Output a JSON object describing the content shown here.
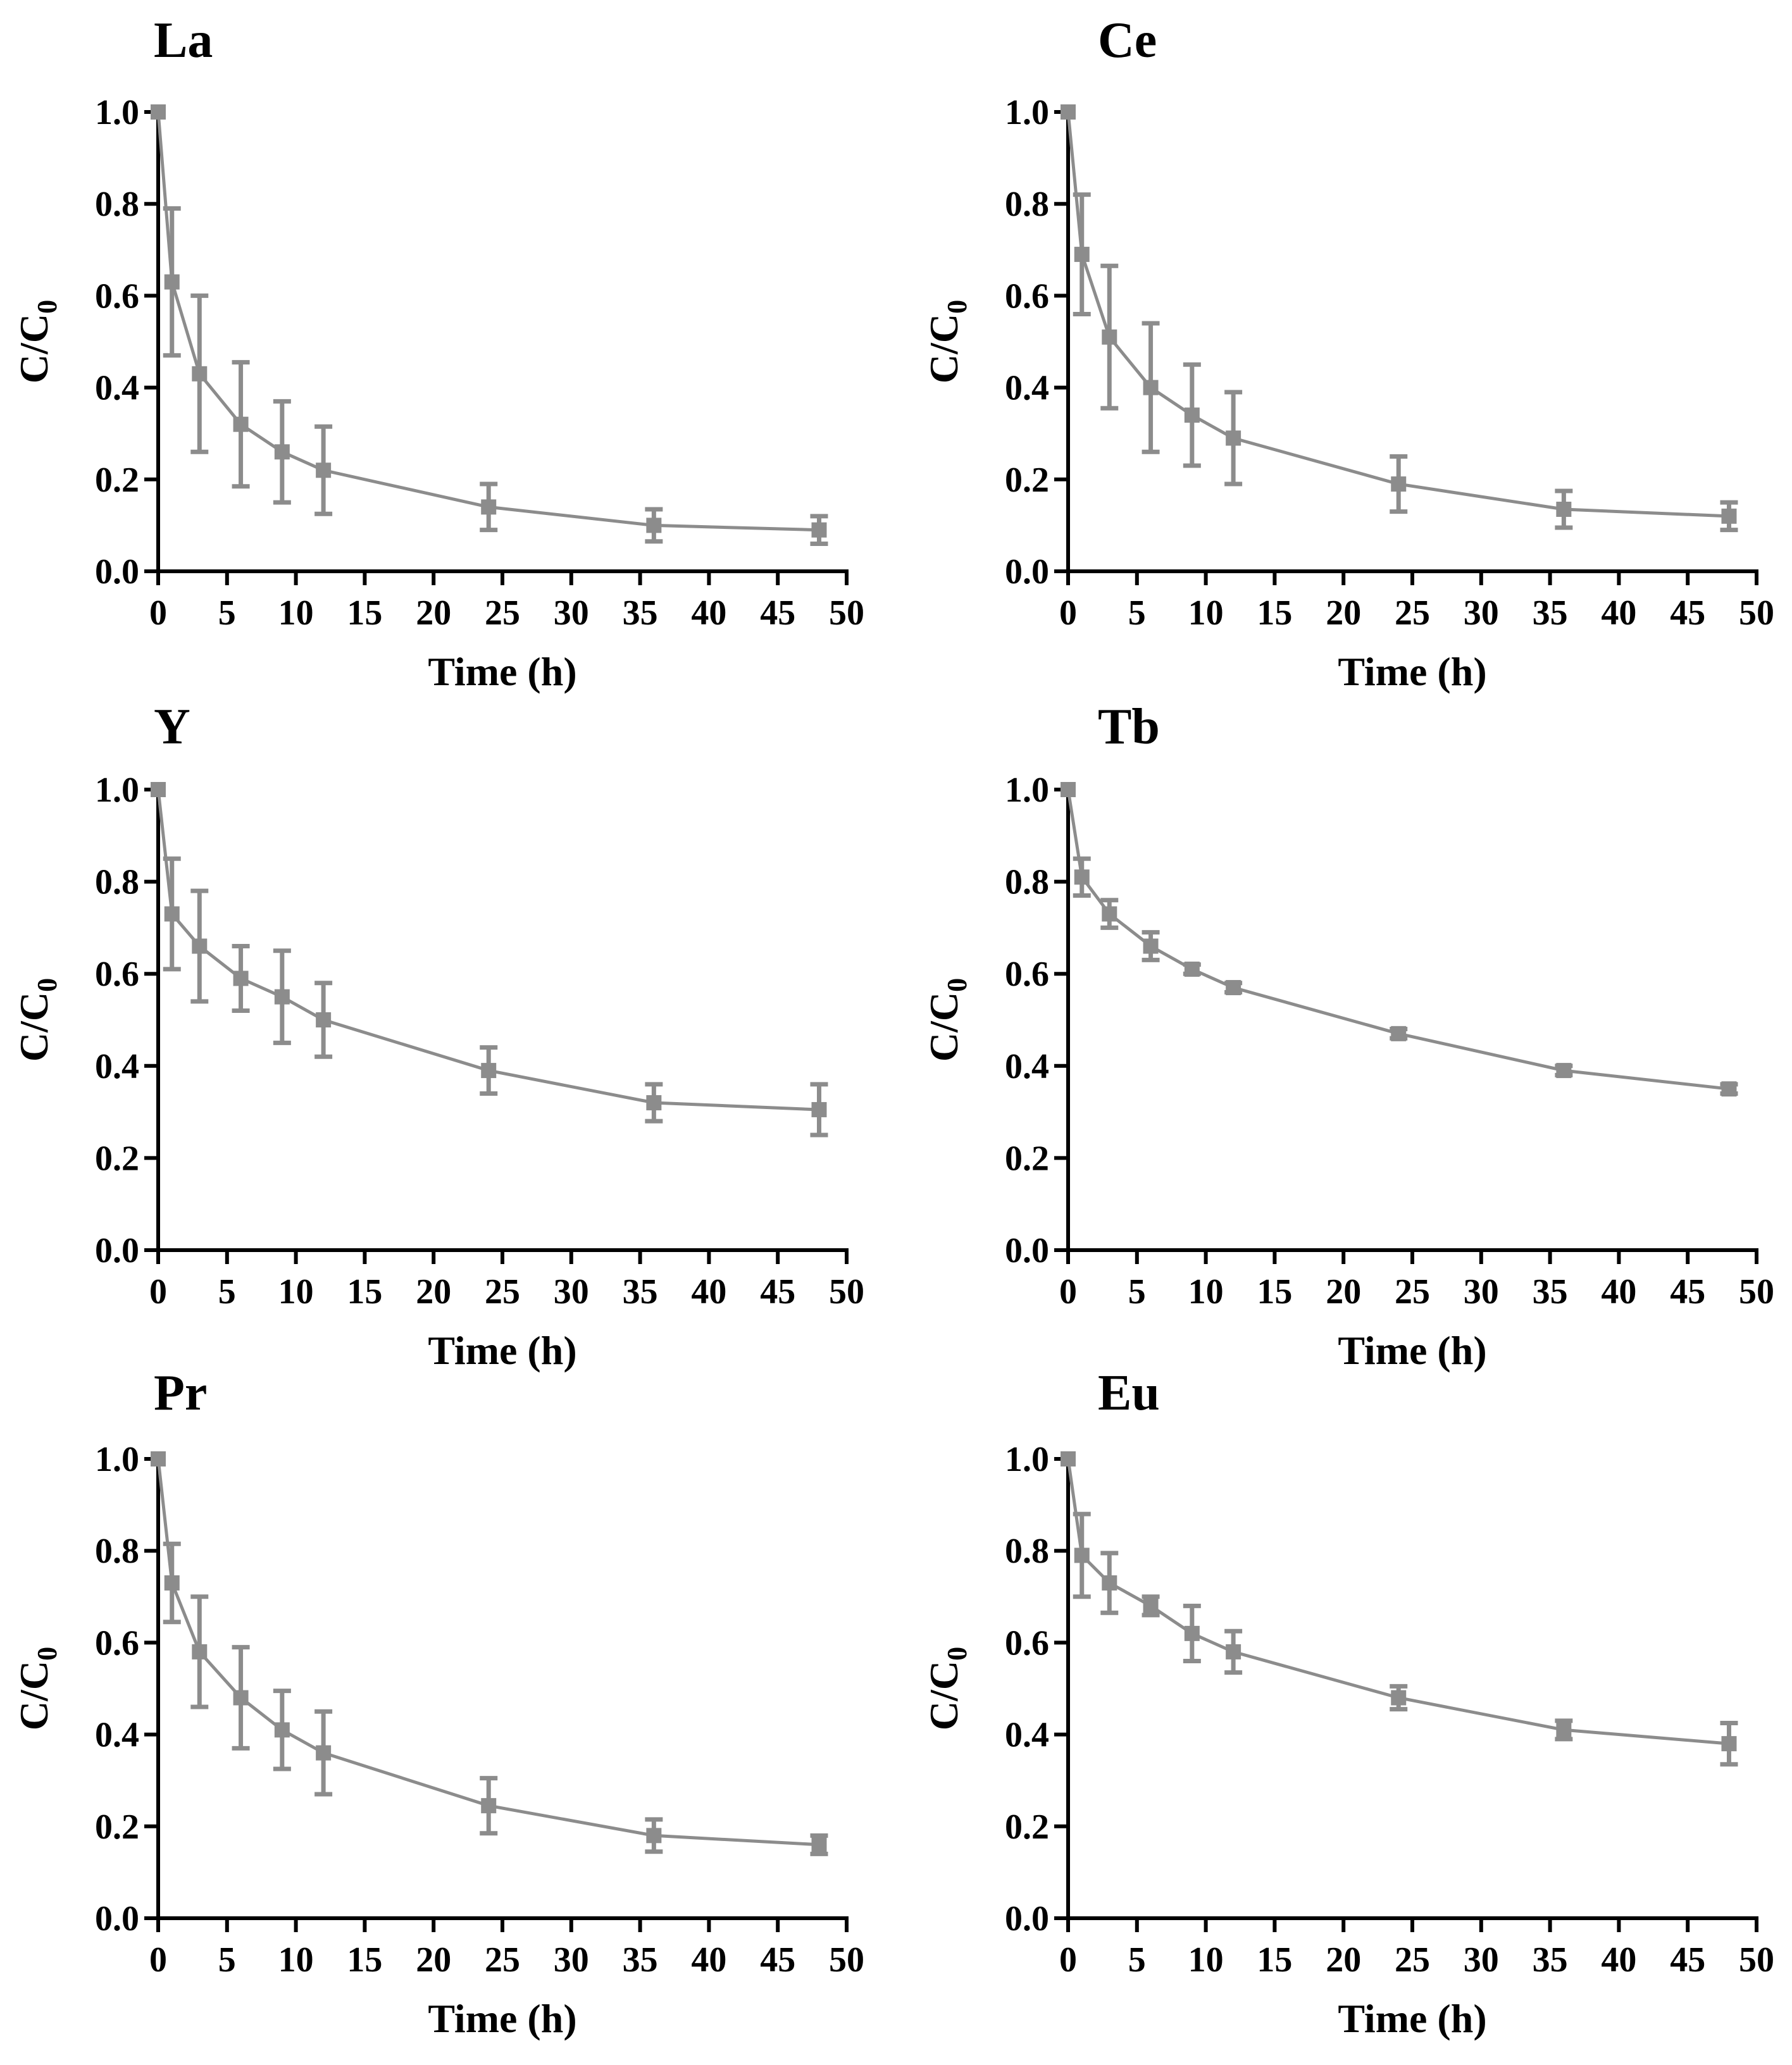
{
  "chart_data": [
    {
      "type": "line",
      "title": "La",
      "xlabel": "Time (h)",
      "ylabel": "C/C",
      "ylabel_subscript": "0",
      "xlim": [
        0,
        50
      ],
      "ylim": [
        0.0,
        1.0
      ],
      "xticks": [
        "0",
        "5",
        "10",
        "15",
        "20",
        "25",
        "30",
        "35",
        "40",
        "45",
        "50"
      ],
      "yticks": [
        "0.0",
        "0.2",
        "0.4",
        "0.6",
        "0.8",
        "1.0"
      ],
      "x": [
        0,
        1,
        3,
        6,
        9,
        12,
        24,
        36,
        48
      ],
      "values": [
        1.0,
        0.63,
        0.43,
        0.32,
        0.26,
        0.22,
        0.14,
        0.1,
        0.09
      ],
      "errors": [
        0.0,
        0.16,
        0.17,
        0.135,
        0.11,
        0.095,
        0.05,
        0.035,
        0.03
      ]
    },
    {
      "type": "line",
      "title": "Ce",
      "xlabel": "Time (h)",
      "ylabel": "C/C",
      "ylabel_subscript": "0",
      "xlim": [
        0,
        50
      ],
      "ylim": [
        0.0,
        1.0
      ],
      "xticks": [
        "0",
        "5",
        "10",
        "15",
        "20",
        "25",
        "30",
        "35",
        "40",
        "45",
        "50"
      ],
      "yticks": [
        "0.0",
        "0.2",
        "0.4",
        "0.6",
        "0.8",
        "1.0"
      ],
      "x": [
        0,
        1,
        3,
        6,
        9,
        12,
        24,
        36,
        48
      ],
      "values": [
        1.0,
        0.69,
        0.51,
        0.4,
        0.34,
        0.29,
        0.19,
        0.135,
        0.12
      ],
      "errors": [
        0.0,
        0.13,
        0.155,
        0.14,
        0.11,
        0.1,
        0.06,
        0.04,
        0.03
      ]
    },
    {
      "type": "line",
      "title": "Y",
      "xlabel": "Time (h)",
      "ylabel": "C/C",
      "ylabel_subscript": "0",
      "xlim": [
        0,
        50
      ],
      "ylim": [
        0.0,
        1.0
      ],
      "xticks": [
        "0",
        "5",
        "10",
        "15",
        "20",
        "25",
        "30",
        "35",
        "40",
        "45",
        "50"
      ],
      "yticks": [
        "0.0",
        "0.2",
        "0.4",
        "0.6",
        "0.8",
        "1.0"
      ],
      "x": [
        0,
        1,
        3,
        6,
        9,
        12,
        24,
        36,
        48
      ],
      "values": [
        1.0,
        0.73,
        0.66,
        0.59,
        0.55,
        0.5,
        0.39,
        0.32,
        0.305
      ],
      "errors": [
        0.0,
        0.12,
        0.12,
        0.07,
        0.1,
        0.08,
        0.05,
        0.04,
        0.055
      ]
    },
    {
      "type": "line",
      "title": "Tb",
      "xlabel": "Time (h)",
      "ylabel": "C/C",
      "ylabel_subscript": "0",
      "xlim": [
        0,
        50
      ],
      "ylim": [
        0.0,
        1.0
      ],
      "xticks": [
        "0",
        "5",
        "10",
        "15",
        "20",
        "25",
        "30",
        "35",
        "40",
        "45",
        "50"
      ],
      "yticks": [
        "0.0",
        "0.2",
        "0.4",
        "0.6",
        "0.8",
        "1.0"
      ],
      "x": [
        0,
        1,
        3,
        6,
        9,
        12,
        24,
        36,
        48
      ],
      "values": [
        1.0,
        0.81,
        0.73,
        0.66,
        0.61,
        0.57,
        0.47,
        0.39,
        0.35
      ],
      "errors": [
        0.0,
        0.04,
        0.03,
        0.03,
        0.01,
        0.01,
        0.01,
        0.01,
        0.01
      ]
    },
    {
      "type": "line",
      "title": "Pr",
      "xlabel": "Time (h)",
      "ylabel": "C/C",
      "ylabel_subscript": "0",
      "xlim": [
        0,
        50
      ],
      "ylim": [
        0.0,
        1.0
      ],
      "xticks": [
        "0",
        "5",
        "10",
        "15",
        "20",
        "25",
        "30",
        "35",
        "40",
        "45",
        "50"
      ],
      "yticks": [
        "0.0",
        "0.2",
        "0.4",
        "0.6",
        "0.8",
        "1.0"
      ],
      "x": [
        0,
        1,
        3,
        6,
        9,
        12,
        24,
        36,
        48
      ],
      "values": [
        1.0,
        0.73,
        0.58,
        0.48,
        0.41,
        0.36,
        0.245,
        0.18,
        0.16
      ],
      "errors": [
        0.0,
        0.085,
        0.12,
        0.11,
        0.085,
        0.09,
        0.06,
        0.035,
        0.02
      ]
    },
    {
      "type": "line",
      "title": "Eu",
      "xlabel": "Time (h)",
      "ylabel": "C/C",
      "ylabel_subscript": "0",
      "xlim": [
        0,
        50
      ],
      "ylim": [
        0.0,
        1.0
      ],
      "xticks": [
        "0",
        "5",
        "10",
        "15",
        "20",
        "25",
        "30",
        "35",
        "40",
        "45",
        "50"
      ],
      "yticks": [
        "0.0",
        "0.2",
        "0.4",
        "0.6",
        "0.8",
        "1.0"
      ],
      "x": [
        0,
        1,
        3,
        6,
        9,
        12,
        24,
        36,
        48
      ],
      "values": [
        1.0,
        0.79,
        0.73,
        0.68,
        0.62,
        0.58,
        0.48,
        0.41,
        0.38
      ],
      "errors": [
        0.0,
        0.09,
        0.065,
        0.02,
        0.06,
        0.045,
        0.025,
        0.02,
        0.045
      ]
    }
  ],
  "colors": {
    "series": "#8c8c8c",
    "axis": "#000000",
    "background": "#ffffff"
  }
}
